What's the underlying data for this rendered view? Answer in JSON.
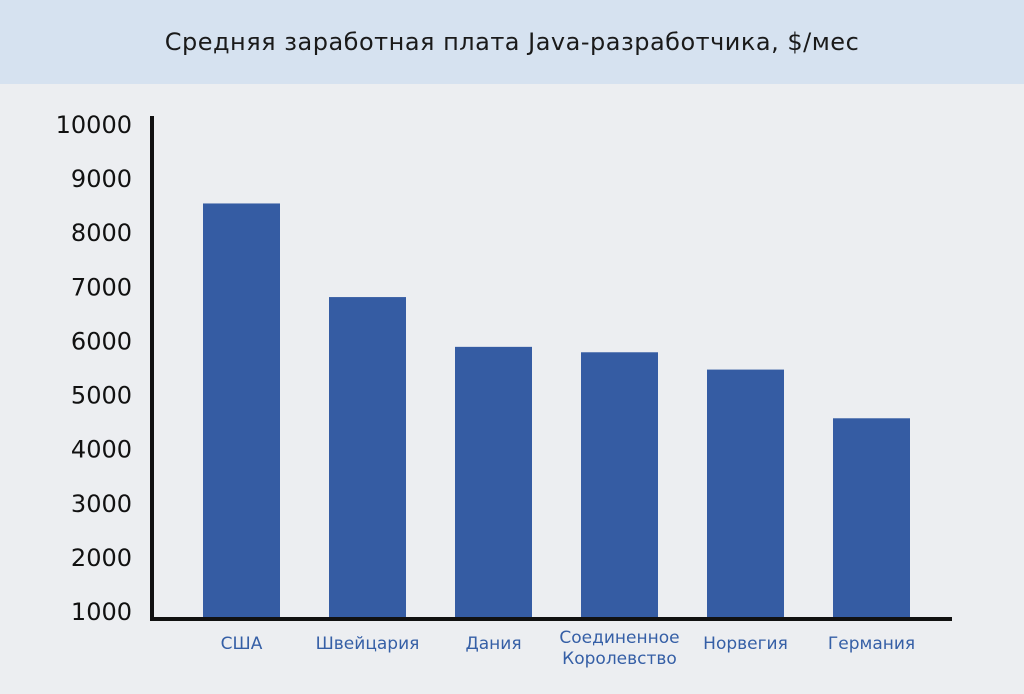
{
  "chart_data": {
    "type": "bar",
    "title": "Средняя заработная плата Java-разработчика, $/мес",
    "xlabel": "",
    "ylabel": "",
    "ylim": [
      1000,
      10000
    ],
    "yticks": [
      1000,
      2000,
      3000,
      4000,
      5000,
      6000,
      7000,
      8000,
      9000,
      10000
    ],
    "categories": [
      [
        "США"
      ],
      [
        "Швейцария"
      ],
      [
        "Дания"
      ],
      [
        "Соединенное",
        "Королевство"
      ],
      [
        "Норвегия"
      ],
      [
        "Германия"
      ]
    ],
    "values": [
      8550,
      6820,
      5900,
      5800,
      5480,
      4580
    ],
    "grid": false,
    "legend": "none",
    "colors": {
      "bar": "#355ca3",
      "axis": "#111111",
      "category_label": "#355fa6",
      "title_band": "#d6e2f0",
      "background": "#eceef1"
    }
  }
}
